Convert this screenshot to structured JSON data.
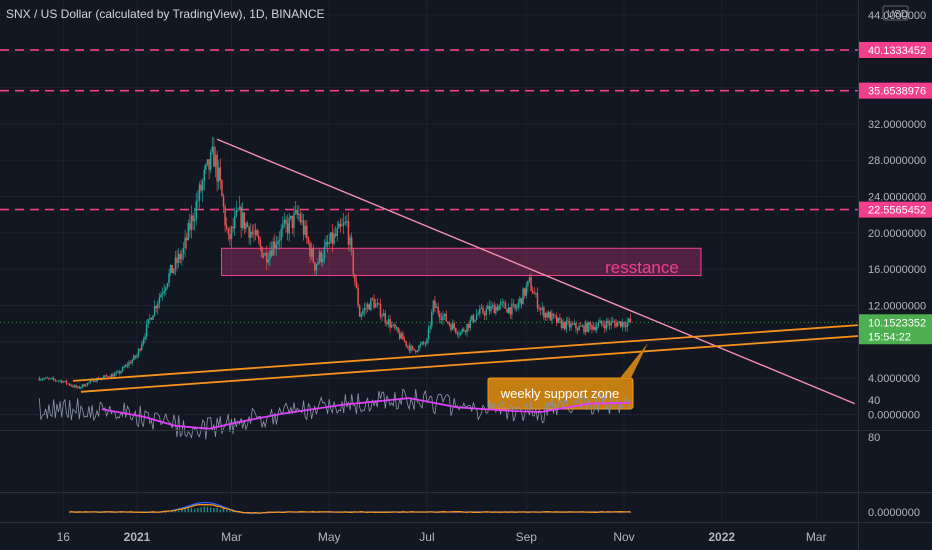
{
  "header": {
    "title": "SNX / US Dollar (calculated by TradingView), 1D, BINANCE",
    "currency": "USD"
  },
  "colors": {
    "background": "#131722",
    "up": "#26a69a",
    "down": "#ef5350",
    "level": "#f23f8c",
    "trend": "#f48fb1",
    "support": "#f7931a",
    "rsi": "#e040fb",
    "current": "#4caf50",
    "macd": "#2962ff"
  },
  "annotations": {
    "resistance_label": "resstance",
    "support_label": "weekly support zone"
  },
  "chart_data": {
    "type": "candlestick",
    "title": "SNX / US Dollar (calculated by TradingView), 1D, BINANCE",
    "y_axis": {
      "ticks": [
        "44.0000000",
        "32.0000000",
        "28.0000000",
        "24.0000000",
        "20.0000000",
        "16.0000000",
        "12.0000000",
        "4.0000000",
        "0.0000000"
      ],
      "range": [
        0,
        44
      ]
    },
    "x_axis": {
      "ticks": [
        "16",
        "2021",
        "Mar",
        "May",
        "Jul",
        "Sep",
        "Nov",
        "2022",
        "Mar"
      ]
    },
    "price_levels": [
      {
        "label": "40.1333452",
        "value": 40.1333452
      },
      {
        "label": "35.6538976",
        "value": 35.6538976
      },
      {
        "label": "22.5565452",
        "value": 22.5565452
      }
    ],
    "current_price": {
      "label": "10.1523352",
      "countdown": "15:54:22",
      "value": 10.1523352
    },
    "resistance_zone": {
      "low": 15.3,
      "high": 18.3
    },
    "trendline_down": {
      "from": {
        "x": "2021-02-20",
        "y": 30.3
      },
      "to": {
        "x": "2022-03-25",
        "y": 1.2
      }
    },
    "support_channel": [
      {
        "from": {
          "x": "2020-11-27",
          "y": 2.5
        },
        "to": {
          "x": "2022-04-25",
          "y": 9.0
        }
      },
      {
        "from": {
          "x": "2020-11-22",
          "y": 3.7
        },
        "to": {
          "x": "2022-04-25",
          "y": 10.2
        }
      }
    ],
    "price_path": [
      [
        "2020-11-01",
        4.0
      ],
      [
        "2020-11-15",
        3.7
      ],
      [
        "2020-11-25",
        2.9
      ],
      [
        "2020-12-05",
        3.8
      ],
      [
        "2020-12-20",
        4.5
      ],
      [
        "2021-01-01",
        6.5
      ],
      [
        "2021-01-10",
        11.0
      ],
      [
        "2021-01-20",
        15.0
      ],
      [
        "2021-01-30",
        18.0
      ],
      [
        "2021-02-05",
        22.0
      ],
      [
        "2021-02-12",
        26.0
      ],
      [
        "2021-02-18",
        28.5
      ],
      [
        "2021-02-22",
        25.0
      ],
      [
        "2021-02-27",
        19.0
      ],
      [
        "2021-03-05",
        22.0
      ],
      [
        "2021-03-12",
        20.5
      ],
      [
        "2021-03-22",
        17.5
      ],
      [
        "2021-04-01",
        20.0
      ],
      [
        "2021-04-12",
        22.0
      ],
      [
        "2021-04-22",
        16.5
      ],
      [
        "2021-05-02",
        19.0
      ],
      [
        "2021-05-12",
        21.0
      ],
      [
        "2021-05-16",
        16.0
      ],
      [
        "2021-05-20",
        11.0
      ],
      [
        "2021-05-28",
        12.5
      ],
      [
        "2021-06-10",
        9.5
      ],
      [
        "2021-06-22",
        7.0
      ],
      [
        "2021-07-01",
        8.0
      ],
      [
        "2021-07-05",
        12.0
      ],
      [
        "2021-07-15",
        10.0
      ],
      [
        "2021-07-22",
        9.0
      ],
      [
        "2021-08-01",
        11.0
      ],
      [
        "2021-08-15",
        12.0
      ],
      [
        "2021-08-25",
        11.5
      ],
      [
        "2021-09-03",
        14.5
      ],
      [
        "2021-09-10",
        11.5
      ],
      [
        "2021-09-22",
        10.0
      ],
      [
        "2021-10-05",
        9.5
      ],
      [
        "2021-10-20",
        10.0
      ],
      [
        "2021-11-05",
        10.15
      ]
    ],
    "rsi": {
      "ticks": [
        "80",
        "40"
      ],
      "band": [
        36,
        60
      ],
      "path": [
        [
          "2020-12-10",
          50
        ],
        [
          "2021-01-05",
          58
        ],
        [
          "2021-01-25",
          68
        ],
        [
          "2021-02-15",
          71
        ],
        [
          "2021-03-05",
          64
        ],
        [
          "2021-04-01",
          55
        ],
        [
          "2021-05-10",
          45
        ],
        [
          "2021-06-20",
          38
        ],
        [
          "2021-07-20",
          48
        ],
        [
          "2021-08-25",
          52
        ],
        [
          "2021-09-10",
          53
        ],
        [
          "2021-10-10",
          44
        ],
        [
          "2021-11-05",
          43
        ]
      ]
    },
    "macd": {
      "ticks": [
        "0.0000000"
      ]
    }
  }
}
